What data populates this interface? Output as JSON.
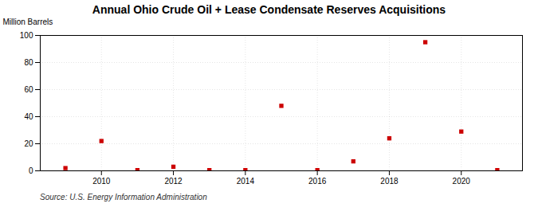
{
  "chart_data": {
    "type": "scatter",
    "title": "Annual Ohio Crude Oil + Lease Condensate Reserves Acquisitions",
    "ylabel": "Million Barrels",
    "source": "Source: U.S. Energy Information Administration",
    "x": [
      2009,
      2010,
      2011,
      2012,
      2013,
      2014,
      2015,
      2016,
      2017,
      2018,
      2019,
      2020,
      2021
    ],
    "values": [
      2,
      22,
      0.5,
      3,
      0.5,
      0.5,
      48,
      0.5,
      7,
      24,
      95,
      29,
      0.5
    ],
    "color": "#cc0000",
    "marker": "square",
    "xlim": [
      2008.3,
      2021.7
    ],
    "ylim": [
      0,
      100
    ],
    "xticks": [
      2010,
      2012,
      2014,
      2016,
      2018,
      2020
    ],
    "yticks": [
      0,
      20,
      40,
      60,
      80,
      100
    ],
    "grid": true
  }
}
